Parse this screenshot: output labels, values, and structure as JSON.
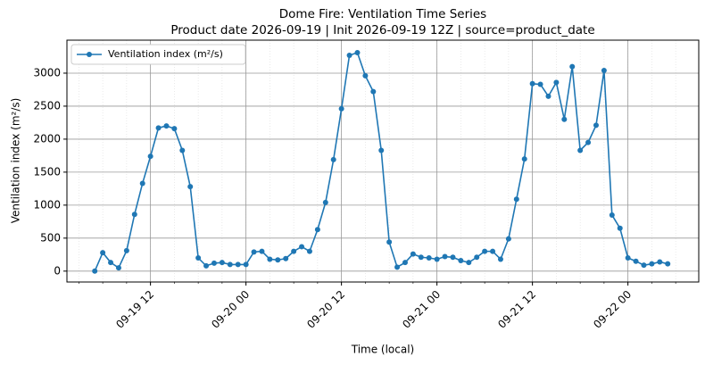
{
  "chart_data": {
    "type": "line",
    "title": "Dome Fire: Ventilation Time Series",
    "subtitle": "Product date 2026-09-19 | Init 2026-09-19 12Z | source=product_date",
    "x_label": "Time (local)",
    "y_label": "Ventilation index (m²/s)",
    "x": [
      "09-19 05",
      "09-19 06",
      "09-19 07",
      "09-19 08",
      "09-19 09",
      "09-19 10",
      "09-19 11",
      "09-19 12",
      "09-19 13",
      "09-19 14",
      "09-19 15",
      "09-19 16",
      "09-19 17",
      "09-19 18",
      "09-19 19",
      "09-19 20",
      "09-19 21",
      "09-19 22",
      "09-19 23",
      "09-20 00",
      "09-20 01",
      "09-20 02",
      "09-20 03",
      "09-20 04",
      "09-20 05",
      "09-20 06",
      "09-20 07",
      "09-20 08",
      "09-20 09",
      "09-20 10",
      "09-20 11",
      "09-20 12",
      "09-20 13",
      "09-20 14",
      "09-20 15",
      "09-20 16",
      "09-20 17",
      "09-20 18",
      "09-20 19",
      "09-20 20",
      "09-20 21",
      "09-20 22",
      "09-20 23",
      "09-21 00",
      "09-21 01",
      "09-21 02",
      "09-21 03",
      "09-21 04",
      "09-21 05",
      "09-21 06",
      "09-21 07",
      "09-21 08",
      "09-21 09",
      "09-21 10",
      "09-21 11",
      "09-21 12",
      "09-21 13",
      "09-21 14",
      "09-21 15",
      "09-21 16",
      "09-21 17",
      "09-21 18",
      "09-21 19",
      "09-21 20",
      "09-21 21",
      "09-21 22",
      "09-21 23",
      "09-22 00",
      "09-22 01",
      "09-22 02",
      "09-22 03",
      "09-22 04",
      "09-22 05"
    ],
    "series": [
      {
        "name": "Ventilation index (m²/s)",
        "color": "#1f77b4",
        "values": [
          0,
          280,
          130,
          50,
          310,
          860,
          1330,
          1740,
          2170,
          2200,
          2160,
          1830,
          1280,
          200,
          80,
          120,
          130,
          100,
          100,
          100,
          290,
          300,
          180,
          170,
          190,
          300,
          370,
          300,
          630,
          1040,
          1690,
          2460,
          3270,
          3310,
          2960,
          2720,
          1830,
          440,
          60,
          130,
          260,
          210,
          200,
          180,
          220,
          210,
          160,
          130,
          210,
          300,
          300,
          180,
          490,
          1090,
          1700,
          2840,
          2830,
          2650,
          2860,
          2300,
          3100,
          1830,
          1950,
          2210,
          3040,
          850,
          650,
          200,
          150,
          90,
          110,
          140,
          110
        ]
      }
    ],
    "xlim": [
      "09-19 01:30",
      "09-22 08:54"
    ],
    "xticks": [
      "09-19 12",
      "09-20 00",
      "09-20 12",
      "09-21 00",
      "09-21 12",
      "09-22 00"
    ],
    "ylim": [
      -165,
      3500
    ],
    "yticks": [
      0,
      500,
      1000,
      1500,
      2000,
      2500,
      3000
    ],
    "grid": true,
    "legend": "upper left"
  }
}
